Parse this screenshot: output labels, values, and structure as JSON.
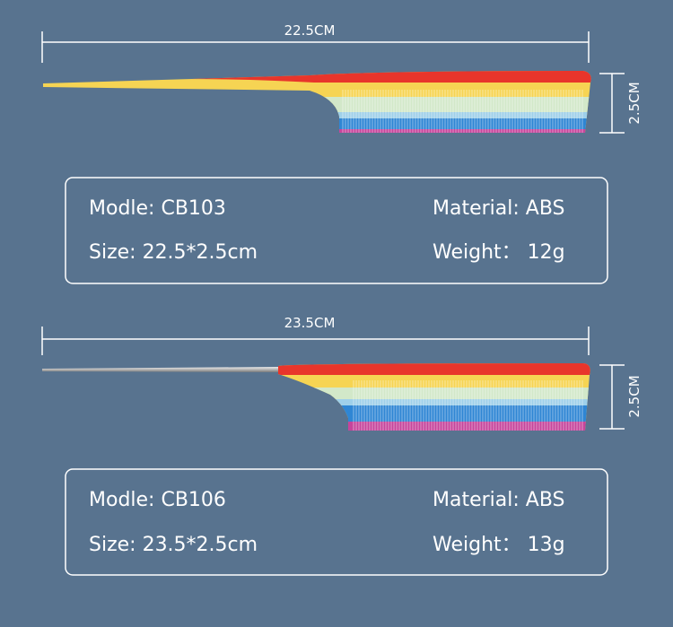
{
  "products": [
    {
      "length_label": "22.5CM",
      "height_label": "2.5CM",
      "model": "Modle: CB103",
      "material": "Material: ABS",
      "size": "Size: 22.5*2.5cm",
      "weight": "Weight： 12g"
    },
    {
      "length_label": "23.5CM",
      "height_label": "2.5CM",
      "model": "Modle: CB106",
      "material": "Material: ABS",
      "size": "Size: 23.5*2.5cm",
      "weight": "Weight： 13g"
    }
  ]
}
